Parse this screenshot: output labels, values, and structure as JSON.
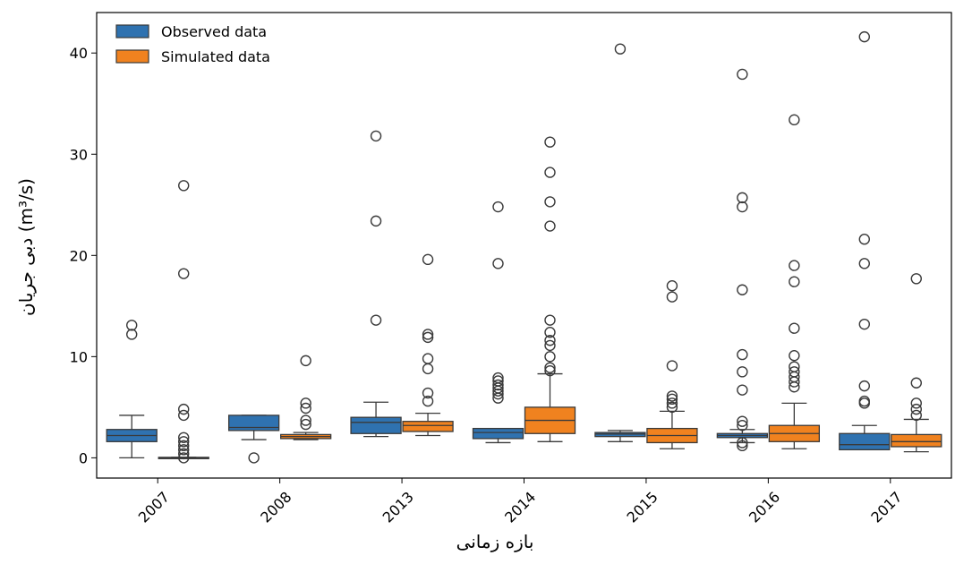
{
  "chart_data": {
    "type": "box",
    "xlabel": "بازه زمانی",
    "ylabel": "دبی جریان (m³/s)",
    "ylim": [
      -2,
      44
    ],
    "yticks": [
      0,
      10,
      20,
      30,
      40
    ],
    "grid": false,
    "legend_position": "top-left",
    "colors": {
      "Observed data": "#2f72b0",
      "Simulated data": "#f0821f"
    },
    "categories": [
      "2007",
      "2008",
      "2013",
      "2014",
      "2015",
      "2016",
      "2017"
    ],
    "series": [
      {
        "name": "Observed data",
        "boxes": [
          {
            "q1": 1.6,
            "median": 2.2,
            "q3": 2.8,
            "whisker_low": 0.0,
            "whisker_high": 4.2,
            "outliers": [
              12.2,
              13.1
            ]
          },
          {
            "q1": 2.7,
            "median": 3.0,
            "q3": 4.2,
            "whisker_low": 1.8,
            "whisker_high": 4.2,
            "outliers": [
              0.0
            ]
          },
          {
            "q1": 2.4,
            "median": 3.5,
            "q3": 4.0,
            "whisker_low": 2.1,
            "whisker_high": 5.5,
            "outliers": [
              13.6,
              23.4,
              31.8
            ]
          },
          {
            "q1": 1.9,
            "median": 2.5,
            "q3": 2.9,
            "whisker_low": 1.5,
            "whisker_high": 2.9,
            "outliers": [
              5.9,
              6.3,
              6.6,
              6.9,
              7.2,
              7.6,
              7.9,
              19.2,
              24.8
            ]
          },
          {
            "q1": 2.1,
            "median": 2.35,
            "q3": 2.5,
            "whisker_low": 1.6,
            "whisker_high": 2.7,
            "outliers": [
              40.4
            ]
          },
          {
            "q1": 2.0,
            "median": 2.2,
            "q3": 2.4,
            "whisker_low": 1.5,
            "whisker_high": 2.8,
            "outliers": [
              1.2,
              1.5,
              3.2,
              3.6,
              6.7,
              8.5,
              10.2,
              16.6,
              24.8,
              25.7,
              37.9
            ]
          },
          {
            "q1": 0.8,
            "median": 1.3,
            "q3": 2.4,
            "whisker_low": 0.8,
            "whisker_high": 3.2,
            "outliers": [
              5.4,
              5.6,
              7.1,
              13.2,
              19.2,
              21.6,
              41.6
            ]
          }
        ]
      },
      {
        "name": "Simulated data",
        "boxes": [
          {
            "q1": 0.0,
            "median": 0.0,
            "q3": 0.05,
            "whisker_low": 0.0,
            "whisker_high": 0.05,
            "outliers": [
              0.0,
              0.4,
              0.8,
              1.2,
              1.6,
              2.0,
              4.2,
              4.8,
              18.2,
              26.9
            ]
          },
          {
            "q1": 1.9,
            "median": 2.1,
            "q3": 2.3,
            "whisker_low": 1.8,
            "whisker_high": 2.5,
            "outliers": [
              3.3,
              3.7,
              4.9,
              5.4,
              9.6
            ]
          },
          {
            "q1": 2.6,
            "median": 3.2,
            "q3": 3.6,
            "whisker_low": 2.2,
            "whisker_high": 4.4,
            "outliers": [
              5.6,
              6.4,
              8.8,
              9.8,
              11.9,
              12.2,
              19.6
            ]
          },
          {
            "q1": 2.4,
            "median": 3.7,
            "q3": 5.0,
            "whisker_low": 1.6,
            "whisker_high": 8.3,
            "outliers": [
              8.6,
              8.9,
              10.0,
              11.1,
              11.6,
              12.4,
              13.6,
              22.9,
              25.3,
              28.2,
              31.2
            ]
          },
          {
            "q1": 1.5,
            "median": 2.2,
            "q3": 2.9,
            "whisker_low": 0.9,
            "whisker_high": 4.6,
            "outliers": [
              5.0,
              5.4,
              5.8,
              6.1,
              9.1,
              15.9,
              17.0
            ]
          },
          {
            "q1": 1.6,
            "median": 2.4,
            "q3": 3.2,
            "whisker_low": 0.9,
            "whisker_high": 5.4,
            "outliers": [
              7.0,
              7.5,
              8.0,
              8.5,
              9.0,
              10.1,
              12.8,
              17.4,
              19.0,
              33.4
            ]
          },
          {
            "q1": 1.1,
            "median": 1.6,
            "q3": 2.3,
            "whisker_low": 0.6,
            "whisker_high": 3.8,
            "outliers": [
              4.2,
              4.8,
              5.4,
              7.4,
              17.7
            ]
          }
        ]
      }
    ]
  }
}
